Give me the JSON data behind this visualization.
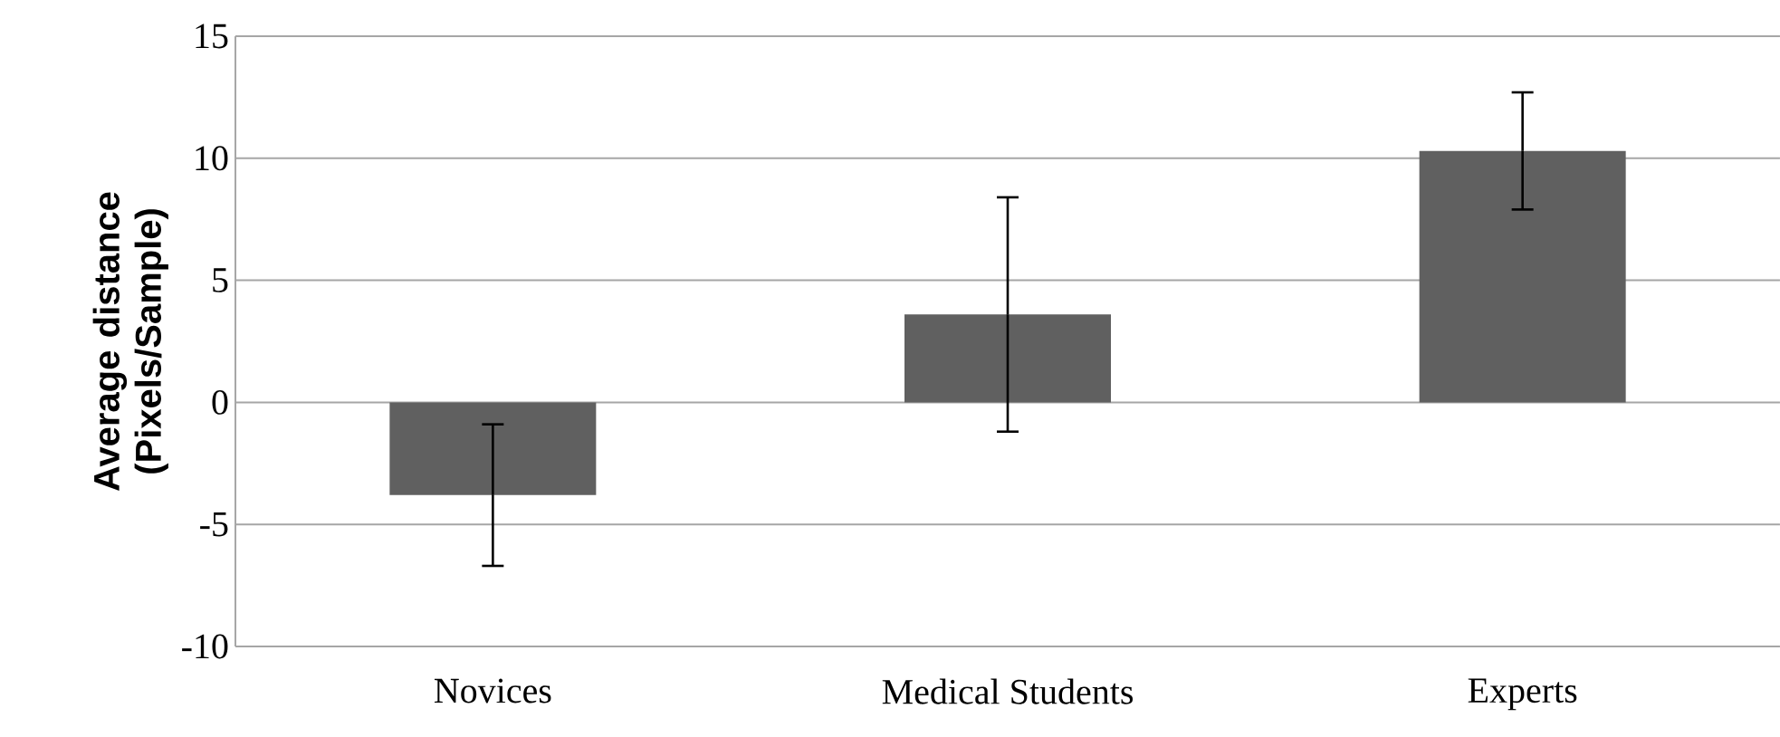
{
  "chart_data": {
    "type": "bar",
    "ylabel": "Average distance (Pixels/Sample)",
    "categories": [
      "Novices",
      "Medical Students",
      "Experts"
    ],
    "values": [
      -3.8,
      3.6,
      10.3
    ],
    "errors": [
      2.9,
      4.8,
      2.4
    ],
    "color": "#606060",
    "ylim": [
      -10,
      15
    ],
    "yticks": [
      -10,
      -5,
      0,
      5,
      10,
      15
    ],
    "grid": "y"
  }
}
